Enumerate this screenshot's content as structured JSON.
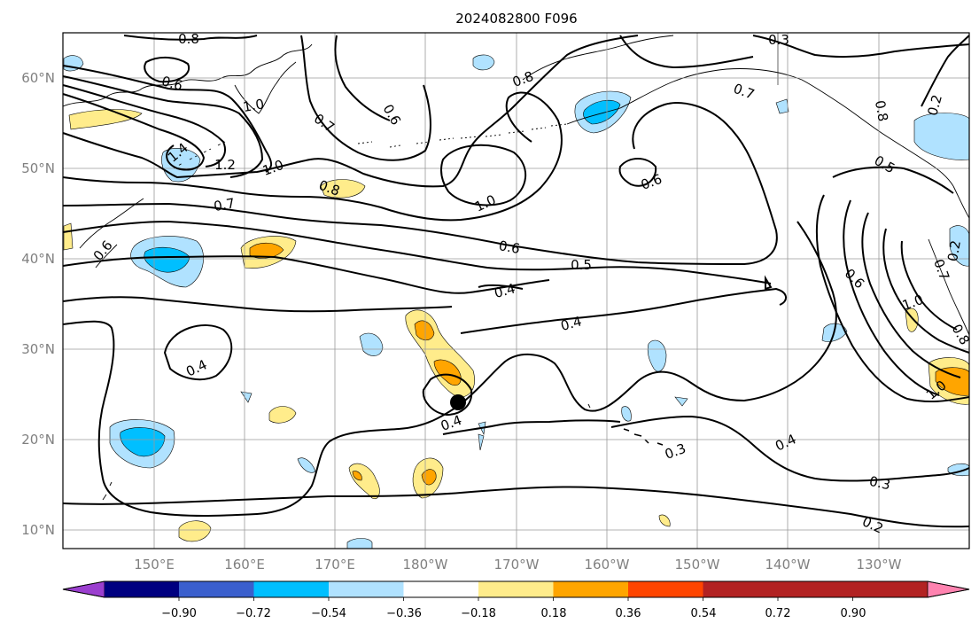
{
  "title": "2024082800 F096",
  "lat_labels": [
    "60°N",
    "50°N",
    "40°N",
    "30°N",
    "20°N",
    "10°N"
  ],
  "lon_labels": [
    "150°E",
    "160°E",
    "170°E",
    "180°W",
    "170°W",
    "160°W",
    "150°W",
    "140°W",
    "130°W"
  ],
  "colorbar": {
    "ticks": [
      "−0.90",
      "−0.72",
      "−0.54",
      "−0.36",
      "−0.18",
      "0.18",
      "0.36",
      "0.54",
      "0.72",
      "0.90"
    ],
    "colors": [
      "#9b3fcf",
      "#000080",
      "#3a5fcd",
      "#00bfff",
      "#b0e2ff",
      "#ffffff",
      "#ffec8b",
      "#ffa500",
      "#ff4500",
      "#b22222",
      "#ff83b0"
    ]
  },
  "contour_labels": [
    {
      "text": "0.8"
    },
    {
      "text": "0.6"
    },
    {
      "text": "1.0"
    },
    {
      "text": "1.4"
    },
    {
      "text": "1.2"
    },
    {
      "text": "1.0"
    },
    {
      "text": "0.7"
    },
    {
      "text": "0.7"
    },
    {
      "text": "0.8"
    },
    {
      "text": "0.6"
    },
    {
      "text": "0.6"
    },
    {
      "text": "0.8"
    },
    {
      "text": "1.0"
    },
    {
      "text": "0.7"
    },
    {
      "text": "0.3"
    },
    {
      "text": "0.8"
    },
    {
      "text": "0.2"
    },
    {
      "text": "0.5"
    },
    {
      "text": "0.6"
    },
    {
      "text": "0.6"
    },
    {
      "text": "0.5"
    },
    {
      "text": "0.4"
    },
    {
      "text": "0.4"
    },
    {
      "text": "0.4"
    },
    {
      "text": "0.4"
    },
    {
      "text": "0.6"
    },
    {
      "text": "0.7"
    },
    {
      "text": "1.0"
    },
    {
      "text": "0.8"
    },
    {
      "text": "1.0"
    },
    {
      "text": "0.2"
    },
    {
      "text": "0.4"
    },
    {
      "text": "0.3"
    },
    {
      "text": "0.3"
    },
    {
      "text": "0.2"
    }
  ]
}
